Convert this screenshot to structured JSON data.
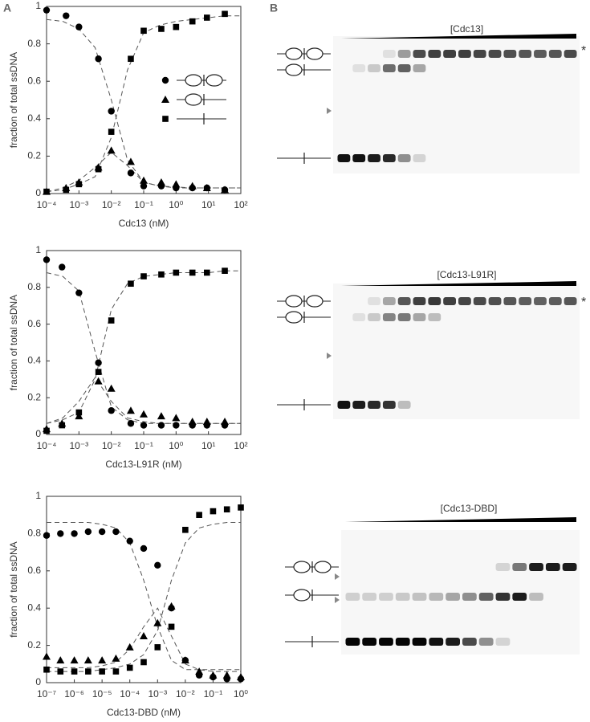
{
  "panel_labels": [
    "A",
    "B"
  ],
  "gels": [
    {
      "label": "[Cdc13]",
      "marker": "*"
    },
    {
      "label": "[Cdc13-L91R]",
      "marker": "*"
    },
    {
      "label": "[Cdc13-DBD]"
    }
  ],
  "chart_data": [
    {
      "type": "scatter",
      "xlabel": "Cdc13 (nM)",
      "ylabel": "fraction of total ssDNA",
      "log_x": true,
      "legend": true,
      "xlim": [
        0.0001,
        100
      ],
      "xticks": [
        {
          "value": 0.0001,
          "label": "10⁻⁴"
        },
        {
          "value": 0.001,
          "label": "10⁻³"
        },
        {
          "value": 0.01,
          "label": "10⁻²"
        },
        {
          "value": 0.1,
          "label": "10⁻¹"
        },
        {
          "value": 1,
          "label": "10⁰"
        },
        {
          "value": 10,
          "label": "10¹"
        },
        {
          "value": 100,
          "label": "10²"
        }
      ],
      "ylim": [
        0,
        1
      ],
      "yticks": [
        0,
        0.2,
        0.4,
        0.6,
        0.8,
        1
      ],
      "x": [
        0.0001,
        0.0004,
        0.001,
        0.004,
        0.01,
        0.04,
        0.1,
        0.35,
        1,
        3.2,
        9,
        32
      ],
      "series": [
        {
          "marker": "circle",
          "color": "#000000",
          "values": [
            0.98,
            0.95,
            0.89,
            0.72,
            0.44,
            0.11,
            0.04,
            0.04,
            0.03,
            0.03,
            0.03,
            0.02
          ]
        },
        {
          "marker": "triangle",
          "color": "#000000",
          "values": [
            0.01,
            0.03,
            0.06,
            0.14,
            0.23,
            0.17,
            0.07,
            0.06,
            0.05,
            0.04,
            0.03,
            0.02
          ]
        },
        {
          "marker": "square",
          "color": "#000000",
          "values": [
            0.01,
            0.02,
            0.05,
            0.13,
            0.33,
            0.72,
            0.87,
            0.88,
            0.89,
            0.92,
            0.94,
            0.96
          ]
        }
      ],
      "fits": {
        "x": [
          0.0001,
          0.000316,
          0.001,
          0.00316,
          0.01,
          0.0316,
          0.1,
          0.316,
          1,
          3.16,
          10,
          31.6,
          100
        ],
        "series": [
          {
            "color": "#555555",
            "values": [
              0.93,
              0.92,
              0.88,
              0.78,
              0.5,
              0.18,
              0.06,
              0.04,
              0.035,
              0.03,
              0.03,
              0.03,
              0.03
            ]
          },
          {
            "color": "#555555",
            "values": [
              0.01,
              0.03,
              0.07,
              0.14,
              0.22,
              0.15,
              0.06,
              0.04,
              0.03,
              0.03,
              0.03,
              0.03,
              0.03
            ]
          },
          {
            "color": "#555555",
            "values": [
              0.01,
              0.02,
              0.05,
              0.09,
              0.3,
              0.66,
              0.86,
              0.9,
              0.92,
              0.93,
              0.94,
              0.95,
              0.95
            ]
          }
        ]
      }
    },
    {
      "type": "scatter",
      "xlabel": "Cdc13-L91R (nM)",
      "ylabel": "fraction of total ssDNA",
      "log_x": true,
      "legend": false,
      "xlim": [
        0.0001,
        100
      ],
      "xticks": [
        {
          "value": 0.0001,
          "label": "10⁻⁴"
        },
        {
          "value": 0.001,
          "label": "10⁻³"
        },
        {
          "value": 0.01,
          "label": "10⁻²"
        },
        {
          "value": 0.1,
          "label": "10⁻¹"
        },
        {
          "value": 1,
          "label": "10⁰"
        },
        {
          "value": 10,
          "label": "10¹"
        },
        {
          "value": 100,
          "label": "10²"
        }
      ],
      "ylim": [
        0,
        1
      ],
      "yticks": [
        0,
        0.2,
        0.4,
        0.6,
        0.8,
        1
      ],
      "x": [
        0.0001,
        0.0003,
        0.001,
        0.004,
        0.01,
        0.04,
        0.1,
        0.35,
        1,
        3.2,
        9,
        32
      ],
      "series": [
        {
          "marker": "circle",
          "color": "#000000",
          "values": [
            0.95,
            0.91,
            0.77,
            0.39,
            0.13,
            0.06,
            0.05,
            0.05,
            0.05,
            0.05,
            0.05,
            0.05
          ]
        },
        {
          "marker": "triangle",
          "color": "#000000",
          "values": [
            0.03,
            0.06,
            0.1,
            0.29,
            0.25,
            0.13,
            0.11,
            0.1,
            0.09,
            0.07,
            0.07,
            0.07
          ]
        },
        {
          "marker": "square",
          "color": "#000000",
          "values": [
            0.02,
            0.05,
            0.12,
            0.34,
            0.62,
            0.82,
            0.86,
            0.87,
            0.88,
            0.88,
            0.88,
            0.89
          ]
        }
      ],
      "fits": {
        "x": [
          0.0001,
          0.000316,
          0.001,
          0.00316,
          0.01,
          0.0316,
          0.1,
          0.316,
          1,
          3.16,
          10,
          31.6,
          100
        ],
        "series": [
          {
            "color": "#555555",
            "values": [
              0.88,
              0.86,
              0.78,
              0.45,
              0.15,
              0.08,
              0.06,
              0.06,
              0.06,
              0.06,
              0.06,
              0.06,
              0.06
            ]
          },
          {
            "color": "#555555",
            "values": [
              0.06,
              0.09,
              0.18,
              0.31,
              0.18,
              0.09,
              0.07,
              0.06,
              0.06,
              0.06,
              0.06,
              0.06,
              0.06
            ]
          },
          {
            "color": "#555555",
            "values": [
              0.06,
              0.08,
              0.12,
              0.3,
              0.68,
              0.82,
              0.86,
              0.87,
              0.88,
              0.88,
              0.88,
              0.89,
              0.89
            ]
          }
        ]
      }
    },
    {
      "type": "scatter",
      "xlabel": "Cdc13-DBD (nM)",
      "ylabel": "fraction of total ssDNA",
      "log_x": true,
      "legend": false,
      "xlim": [
        1e-07,
        1
      ],
      "xticks": [
        {
          "value": 1e-07,
          "label": "10⁻⁷"
        },
        {
          "value": 1e-06,
          "label": "10⁻⁶"
        },
        {
          "value": 1e-05,
          "label": "10⁻⁵"
        },
        {
          "value": 0.0001,
          "label": "10⁻⁴"
        },
        {
          "value": 0.001,
          "label": "10⁻³"
        },
        {
          "value": 0.01,
          "label": "10⁻²"
        },
        {
          "value": 0.1,
          "label": "10⁻¹"
        },
        {
          "value": 1,
          "label": "10⁰"
        }
      ],
      "ylim": [
        0,
        1
      ],
      "yticks": [
        0,
        0.2,
        0.4,
        0.6,
        0.8,
        1
      ],
      "x": [
        1e-07,
        3.16e-07,
        1e-06,
        3.16e-06,
        1e-05,
        3.16e-05,
        0.0001,
        0.000316,
        0.001,
        0.00316,
        0.01,
        0.0316,
        0.1,
        0.316,
        1
      ],
      "series": [
        {
          "marker": "circle",
          "color": "#000000",
          "values": [
            0.79,
            0.8,
            0.8,
            0.81,
            0.81,
            0.81,
            0.76,
            0.72,
            0.63,
            0.4,
            0.12,
            0.04,
            0.03,
            0.02,
            0.02
          ]
        },
        {
          "marker": "triangle",
          "color": "#000000",
          "values": [
            0.14,
            0.12,
            0.12,
            0.12,
            0.12,
            0.13,
            0.19,
            0.25,
            0.32,
            0.41,
            0.12,
            0.06,
            0.04,
            0.04,
            0.03
          ]
        },
        {
          "marker": "square",
          "color": "#000000",
          "values": [
            0.07,
            0.06,
            0.06,
            0.06,
            0.06,
            0.06,
            0.08,
            0.11,
            0.19,
            0.3,
            0.82,
            0.9,
            0.92,
            0.93,
            0.94
          ]
        }
      ],
      "fits": {
        "x": [
          1e-07,
          3.16e-07,
          1e-06,
          3.16e-06,
          1e-05,
          3.16e-05,
          0.0001,
          0.000316,
          0.001,
          0.00316,
          0.01,
          0.0316,
          0.1,
          0.316,
          1
        ],
        "series": [
          {
            "color": "#555555",
            "values": [
              0.86,
              0.86,
              0.86,
              0.86,
              0.85,
              0.83,
              0.75,
              0.55,
              0.3,
              0.12,
              0.07,
              0.07,
              0.07,
              0.07,
              0.07
            ]
          },
          {
            "color": "#555555",
            "values": [
              0.08,
              0.08,
              0.08,
              0.08,
              0.09,
              0.11,
              0.18,
              0.3,
              0.4,
              0.25,
              0.1,
              0.07,
              0.06,
              0.06,
              0.06
            ]
          },
          {
            "color": "#555555",
            "values": [
              0.06,
              0.06,
              0.06,
              0.06,
              0.07,
              0.08,
              0.1,
              0.15,
              0.28,
              0.55,
              0.75,
              0.83,
              0.85,
              0.86,
              0.86
            ]
          }
        ]
      }
    }
  ]
}
